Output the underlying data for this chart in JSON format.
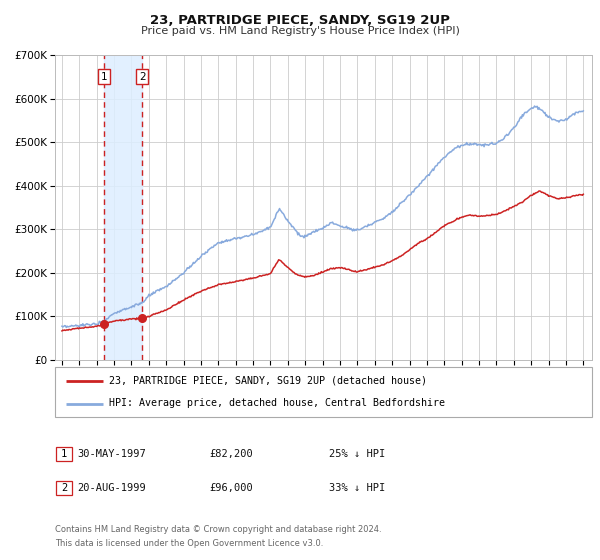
{
  "title": "23, PARTRIDGE PIECE, SANDY, SG19 2UP",
  "subtitle": "Price paid vs. HM Land Registry's House Price Index (HPI)",
  "ylim": [
    0,
    700000
  ],
  "xlim": [
    1994.6,
    2025.5
  ],
  "yticks": [
    0,
    100000,
    200000,
    300000,
    400000,
    500000,
    600000,
    700000
  ],
  "ytick_labels": [
    "£0",
    "£100K",
    "£200K",
    "£300K",
    "£400K",
    "£500K",
    "£600K",
    "£700K"
  ],
  "xtick_years": [
    1995,
    1996,
    1997,
    1998,
    1999,
    2000,
    2001,
    2002,
    2003,
    2004,
    2005,
    2006,
    2007,
    2008,
    2009,
    2010,
    2011,
    2012,
    2013,
    2014,
    2015,
    2016,
    2017,
    2018,
    2019,
    2020,
    2021,
    2022,
    2023,
    2024,
    2025
  ],
  "sale1_x": 1997.41,
  "sale1_y": 82200,
  "sale2_x": 1999.63,
  "sale2_y": 96000,
  "sale1_date": "30-MAY-1997",
  "sale1_price": "£82,200",
  "sale1_hpi": "25% ↓ HPI",
  "sale2_date": "20-AUG-1999",
  "sale2_price": "£96,000",
  "sale2_hpi": "33% ↓ HPI",
  "red_line_color": "#cc2222",
  "blue_line_color": "#88aadd",
  "dot_color": "#cc2222",
  "vline_color": "#cc2222",
  "shade_color": "#ddeeff",
  "legend1_label": "23, PARTRIDGE PIECE, SANDY, SG19 2UP (detached house)",
  "legend2_label": "HPI: Average price, detached house, Central Bedfordshire",
  "footer1": "Contains HM Land Registry data © Crown copyright and database right 2024.",
  "footer2": "This data is licensed under the Open Government Licence v3.0.",
  "background_color": "#ffffff",
  "grid_color": "#cccccc",
  "hpi_anchors": [
    [
      1995.0,
      75000
    ],
    [
      1996.0,
      79000
    ],
    [
      1997.0,
      83000
    ],
    [
      1997.5,
      92000
    ],
    [
      1998.0,
      108000
    ],
    [
      1999.0,
      122000
    ],
    [
      1999.7,
      132000
    ],
    [
      2000.0,
      148000
    ],
    [
      2001.0,
      168000
    ],
    [
      2002.0,
      200000
    ],
    [
      2003.0,
      238000
    ],
    [
      2004.0,
      270000
    ],
    [
      2005.0,
      278000
    ],
    [
      2006.0,
      288000
    ],
    [
      2007.0,
      305000
    ],
    [
      2007.5,
      348000
    ],
    [
      2008.0,
      320000
    ],
    [
      2008.7,
      285000
    ],
    [
      2009.0,
      283000
    ],
    [
      2009.5,
      294000
    ],
    [
      2010.0,
      302000
    ],
    [
      2010.5,
      316000
    ],
    [
      2011.0,
      308000
    ],
    [
      2011.5,
      302000
    ],
    [
      2012.0,
      298000
    ],
    [
      2012.5,
      307000
    ],
    [
      2013.0,
      316000
    ],
    [
      2013.5,
      325000
    ],
    [
      2014.0,
      340000
    ],
    [
      2014.5,
      360000
    ],
    [
      2015.0,
      378000
    ],
    [
      2015.5,
      400000
    ],
    [
      2016.0,
      420000
    ],
    [
      2016.5,
      445000
    ],
    [
      2017.0,
      465000
    ],
    [
      2017.5,
      483000
    ],
    [
      2018.0,
      493000
    ],
    [
      2018.5,
      497000
    ],
    [
      2019.0,
      493000
    ],
    [
      2019.5,
      494000
    ],
    [
      2020.0,
      497000
    ],
    [
      2020.5,
      512000
    ],
    [
      2021.0,
      532000
    ],
    [
      2021.5,
      562000
    ],
    [
      2022.0,
      578000
    ],
    [
      2022.3,
      582000
    ],
    [
      2022.7,
      570000
    ],
    [
      2023.0,
      558000
    ],
    [
      2023.5,
      548000
    ],
    [
      2024.0,
      552000
    ],
    [
      2024.5,
      567000
    ],
    [
      2025.0,
      572000
    ]
  ],
  "red_anchors": [
    [
      1995.0,
      68000
    ],
    [
      1996.0,
      73000
    ],
    [
      1997.0,
      77000
    ],
    [
      1997.41,
      82200
    ],
    [
      1998.0,
      90000
    ],
    [
      1999.0,
      94000
    ],
    [
      1999.63,
      96000
    ],
    [
      2000.0,
      100000
    ],
    [
      2001.0,
      115000
    ],
    [
      2002.0,
      138000
    ],
    [
      2003.0,
      158000
    ],
    [
      2004.0,
      173000
    ],
    [
      2005.0,
      180000
    ],
    [
      2006.0,
      188000
    ],
    [
      2007.0,
      198000
    ],
    [
      2007.5,
      232000
    ],
    [
      2008.0,
      212000
    ],
    [
      2008.5,
      196000
    ],
    [
      2009.0,
      191000
    ],
    [
      2009.5,
      194000
    ],
    [
      2010.0,
      202000
    ],
    [
      2010.5,
      210000
    ],
    [
      2011.0,
      212000
    ],
    [
      2011.5,
      207000
    ],
    [
      2012.0,
      202000
    ],
    [
      2012.5,
      207000
    ],
    [
      2013.0,
      213000
    ],
    [
      2013.5,
      218000
    ],
    [
      2014.0,
      228000
    ],
    [
      2014.5,
      238000
    ],
    [
      2015.0,
      253000
    ],
    [
      2015.5,
      268000
    ],
    [
      2016.0,
      278000
    ],
    [
      2016.5,
      293000
    ],
    [
      2017.0,
      308000
    ],
    [
      2017.5,
      318000
    ],
    [
      2018.0,
      328000
    ],
    [
      2018.5,
      333000
    ],
    [
      2019.0,
      330000
    ],
    [
      2019.5,
      332000
    ],
    [
      2020.0,
      334000
    ],
    [
      2020.5,
      342000
    ],
    [
      2021.0,
      352000
    ],
    [
      2021.5,
      363000
    ],
    [
      2022.0,
      378000
    ],
    [
      2022.5,
      388000
    ],
    [
      2023.0,
      377000
    ],
    [
      2023.5,
      370000
    ],
    [
      2024.0,
      372000
    ],
    [
      2024.5,
      377000
    ],
    [
      2025.0,
      380000
    ]
  ]
}
